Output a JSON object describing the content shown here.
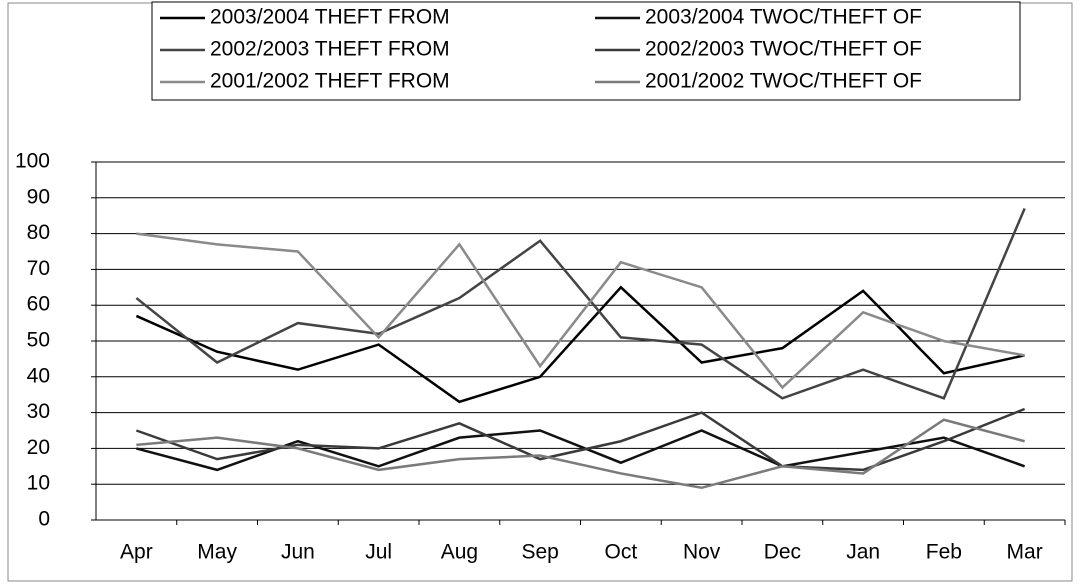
{
  "chart_data": {
    "type": "line",
    "categories": [
      "Apr",
      "May",
      "Jun",
      "Jul",
      "Aug",
      "Sep",
      "Oct",
      "Nov",
      "Dec",
      "Jan",
      "Feb",
      "Mar"
    ],
    "series": [
      {
        "name": "2003/2004 THEFT FROM",
        "color": "#000000",
        "values": [
          57,
          47,
          42,
          49,
          33,
          40,
          65,
          44,
          48,
          64,
          41,
          46
        ]
      },
      {
        "name": "2003/2004 TWOC/THEFT OF",
        "color": "#111111",
        "values": [
          20,
          14,
          22,
          15,
          23,
          25,
          16,
          25,
          15,
          19,
          23,
          15
        ]
      },
      {
        "name": "2002/2003 THEFT FROM",
        "color": "#444444",
        "values": [
          62,
          44,
          55,
          52,
          62,
          78,
          51,
          49,
          34,
          42,
          34,
          87
        ]
      },
      {
        "name": "2002/2003 TWOC/THEFT OF",
        "color": "#3a3a3a",
        "values": [
          25,
          17,
          21,
          20,
          27,
          17,
          22,
          30,
          15,
          14,
          22,
          31
        ]
      },
      {
        "name": "2001/2002 THEFT FROM",
        "color": "#8a8a8a",
        "values": [
          80,
          77,
          75,
          51,
          77,
          43,
          72,
          65,
          37,
          58,
          50,
          46
        ]
      },
      {
        "name": "2001/2002 TWOC/THEFT OF",
        "color": "#7a7a7a",
        "values": [
          21,
          23,
          20,
          14,
          17,
          18,
          13,
          9,
          15,
          13,
          28,
          22
        ]
      }
    ],
    "ylim": [
      0,
      100
    ],
    "yticks": [
      0,
      10,
      20,
      30,
      40,
      50,
      60,
      70,
      80,
      90,
      100
    ],
    "grid": true
  }
}
